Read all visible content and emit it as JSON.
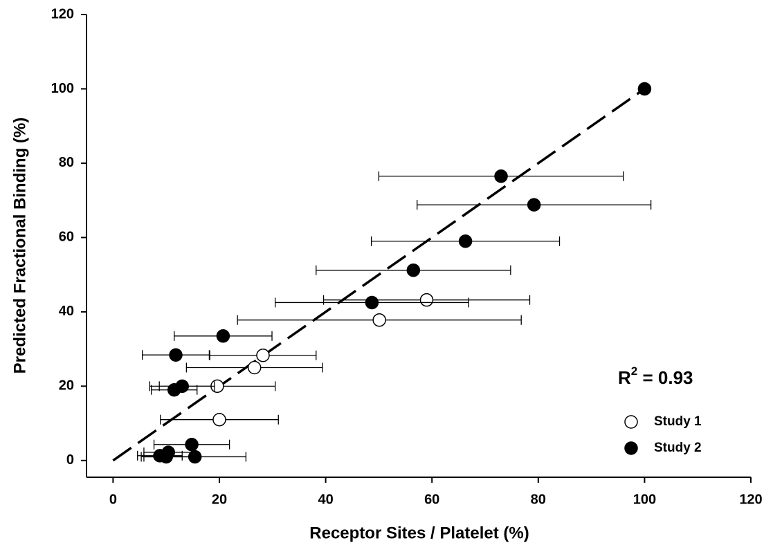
{
  "chart_data": {
    "type": "scatter",
    "x_label": "Receptor Sites / Platelet (%)",
    "y_label": "Predicted Fractional Binding (%)",
    "xlim": [
      -5,
      120
    ],
    "ylim": [
      -4.5,
      120
    ],
    "xticks": [
      0,
      20,
      40,
      60,
      80,
      100,
      120
    ],
    "yticks": [
      0,
      20,
      40,
      60,
      80,
      100,
      120
    ],
    "series": [
      {
        "name": "Study 1",
        "color": "#000000",
        "marker_fill": "#ffffff",
        "x": [
          59.0,
          50.1,
          28.2,
          26.6,
          19.6,
          20.0
        ],
        "values": [
          43.2,
          37.8,
          28.3,
          25.0,
          20.0,
          11.0
        ],
        "x_error": [
          19.4,
          26.7,
          10.0,
          12.8,
          10.9,
          11.1
        ]
      },
      {
        "name": "Study 2",
        "color": "#000000",
        "marker_fill": "#000000",
        "x": [
          100,
          73.0,
          79.2,
          66.3,
          56.5,
          48.7,
          20.7,
          11.8,
          13.0,
          11.5,
          14.8,
          10.4,
          15.4,
          8.8,
          10.0
        ],
        "values": [
          100,
          76.5,
          68.8,
          59.0,
          51.2,
          42.5,
          33.5,
          28.4,
          20.0,
          19.0,
          4.3,
          2.2,
          1.0,
          1.3,
          1.0
        ],
        "x_error": [
          0,
          23.0,
          22.0,
          17.7,
          18.3,
          18.2,
          9.2,
          6.3,
          6.1,
          4.3,
          7.1,
          4.6,
          9.6,
          4.2,
          4.7
        ]
      }
    ],
    "fit_line": {
      "x": [
        0,
        100
      ],
      "values": [
        0,
        100
      ],
      "style": "dashed",
      "color": "#000000"
    },
    "annotation": {
      "text": "R",
      "superscript": "2",
      "suffix": " = 0.93"
    },
    "legend": "lower right"
  }
}
